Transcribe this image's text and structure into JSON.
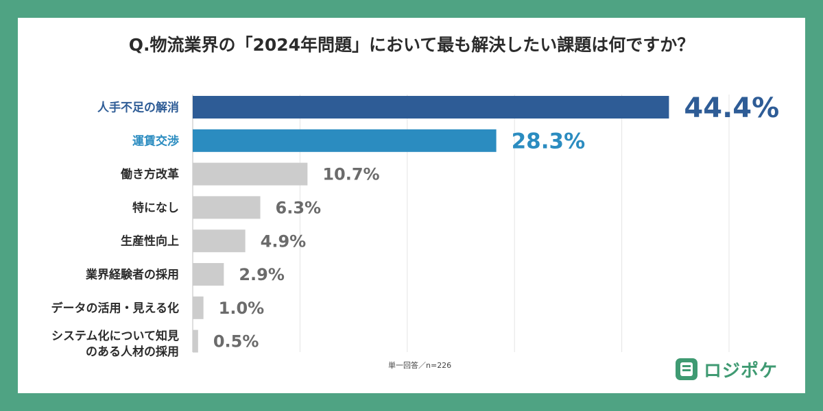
{
  "page": {
    "title": "Q.物流業界の「2024年問題」において最も解決したい課題は何ですか？",
    "footnote": "単一回答／n=226",
    "brand": "ロジポケ"
  },
  "colors": {
    "background": "#4fa383",
    "highlight_1": "#2e5c96",
    "highlight_2": "#2b8cc0",
    "neutral_bar": "#cccccc",
    "neutral_text": "#6b6b6b",
    "label_text": "#2b2b2b",
    "brand": "#3f9a72"
  },
  "chart_data": {
    "type": "bar",
    "orientation": "horizontal",
    "title": "Q.物流業界の「2024年問題」において最も解決したい課題は何ですか？",
    "xlabel": "",
    "ylabel": "",
    "xlim": [
      0,
      50
    ],
    "grid": true,
    "categories": [
      "人手不足の解消",
      "運賃交渉",
      "働き方改革",
      "特になし",
      "生産性向上",
      "業界経験者の採用",
      "データの活用・見える化",
      [
        "システム化について知見",
        "のある人材の採用"
      ]
    ],
    "values": [
      44.4,
      28.3,
      10.7,
      6.3,
      4.9,
      2.9,
      1.0,
      0.5
    ],
    "value_labels": [
      "44.4%",
      "28.3%",
      "10.7%",
      "6.3%",
      "4.9%",
      "2.9%",
      "1.0%",
      "0.5%"
    ],
    "highlight": [
      "#2e5c96",
      "#2b8cc0",
      null,
      null,
      null,
      null,
      null,
      null
    ]
  }
}
